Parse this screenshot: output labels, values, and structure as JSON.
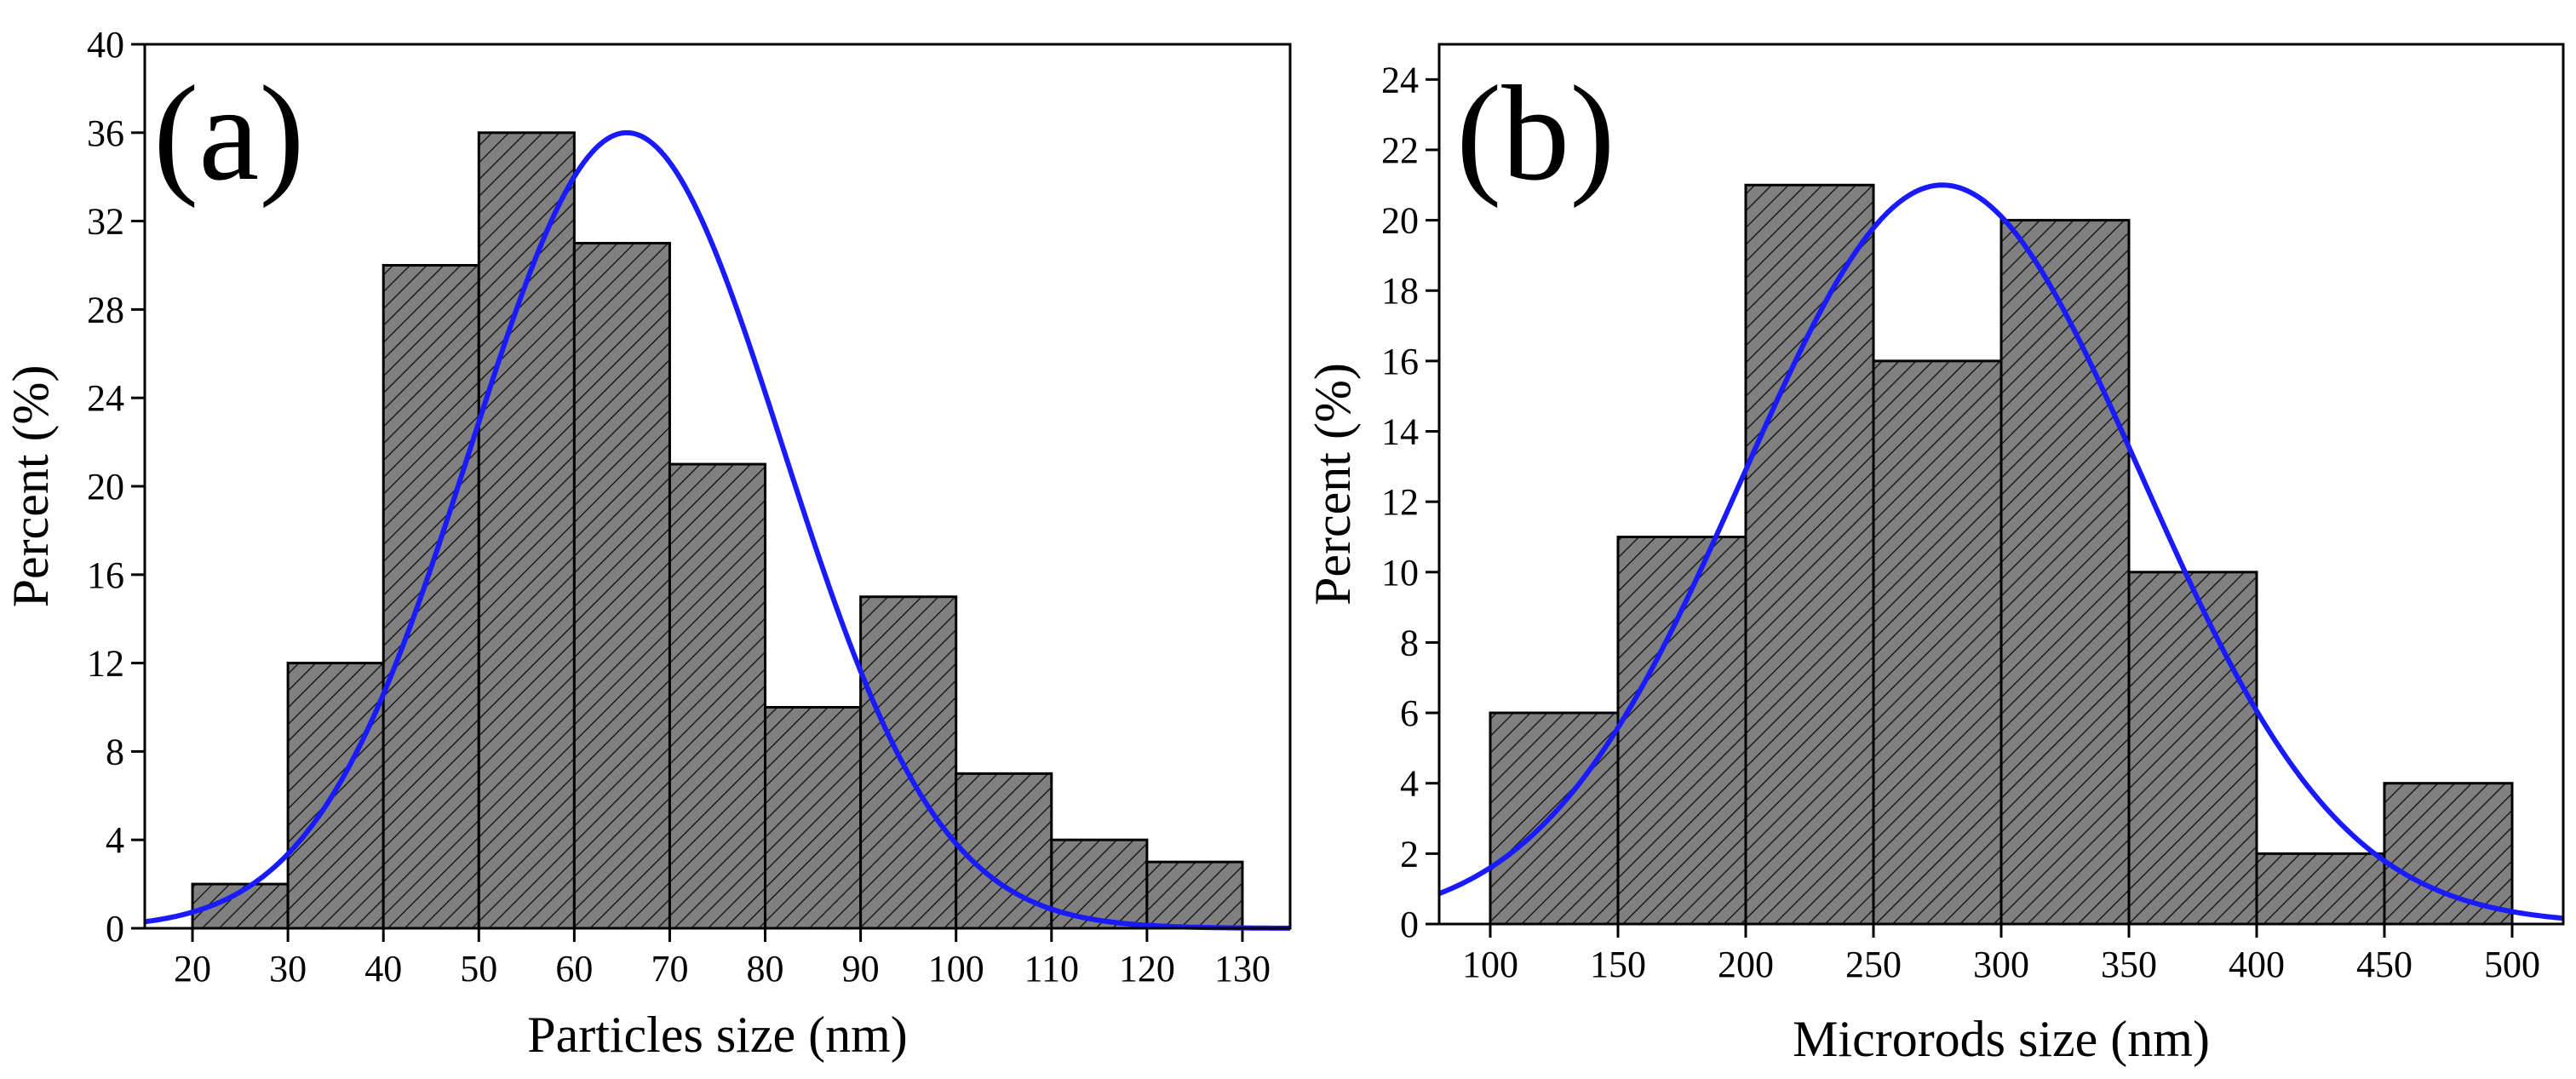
{
  "chart_data": [
    {
      "type": "bar",
      "panel_label": "(a)",
      "xlabel": "Particles size (nm)",
      "ylabel": "Percent (%)",
      "xlim": [
        15,
        135
      ],
      "ylim": [
        0,
        40
      ],
      "x_ticks": [
        20,
        30,
        40,
        50,
        60,
        70,
        80,
        90,
        100,
        110,
        120,
        130
      ],
      "y_ticks": [
        0,
        4,
        8,
        12,
        16,
        20,
        24,
        28,
        32,
        36,
        40
      ],
      "bins": [
        {
          "from": 20,
          "to": 30,
          "value": 2
        },
        {
          "from": 30,
          "to": 40,
          "value": 12
        },
        {
          "from": 40,
          "to": 50,
          "value": 30
        },
        {
          "from": 50,
          "to": 60,
          "value": 36
        },
        {
          "from": 60,
          "to": 70,
          "value": 31
        },
        {
          "from": 70,
          "to": 80,
          "value": 21
        },
        {
          "from": 80,
          "to": 90,
          "value": 10
        },
        {
          "from": 90,
          "to": 100,
          "value": 15
        },
        {
          "from": 100,
          "to": 110,
          "value": 7
        },
        {
          "from": 110,
          "to": 120,
          "value": 4
        },
        {
          "from": 120,
          "to": 130,
          "value": 3
        }
      ],
      "fit": {
        "type": "gaussian",
        "mean": 65.5,
        "sigma": 16.3,
        "peak": 36
      },
      "bar_color": "#7a7a7a",
      "fit_color": "#1a1aff"
    },
    {
      "type": "bar",
      "panel_label": "(b)",
      "xlabel": "Microrods size (nm)",
      "ylabel": "Percent (%)",
      "xlim": [
        80,
        520
      ],
      "ylim": [
        0,
        25
      ],
      "x_ticks": [
        100,
        150,
        200,
        250,
        300,
        350,
        400,
        450,
        500
      ],
      "y_ticks": [
        0,
        2,
        4,
        6,
        8,
        10,
        12,
        14,
        16,
        18,
        20,
        22,
        24
      ],
      "bins": [
        {
          "from": 100,
          "to": 150,
          "value": 6
        },
        {
          "from": 150,
          "to": 200,
          "value": 11
        },
        {
          "from": 200,
          "to": 250,
          "value": 21
        },
        {
          "from": 250,
          "to": 300,
          "value": 16
        },
        {
          "from": 300,
          "to": 350,
          "value": 20
        },
        {
          "from": 350,
          "to": 400,
          "value": 10
        },
        {
          "from": 400,
          "to": 450,
          "value": 2
        },
        {
          "from": 450,
          "to": 500,
          "value": 4
        }
      ],
      "fit": {
        "type": "gaussian",
        "mean": 277,
        "sigma": 78,
        "peak": 21
      },
      "bar_color": "#7a7a7a",
      "fit_color": "#1a1aff"
    }
  ]
}
